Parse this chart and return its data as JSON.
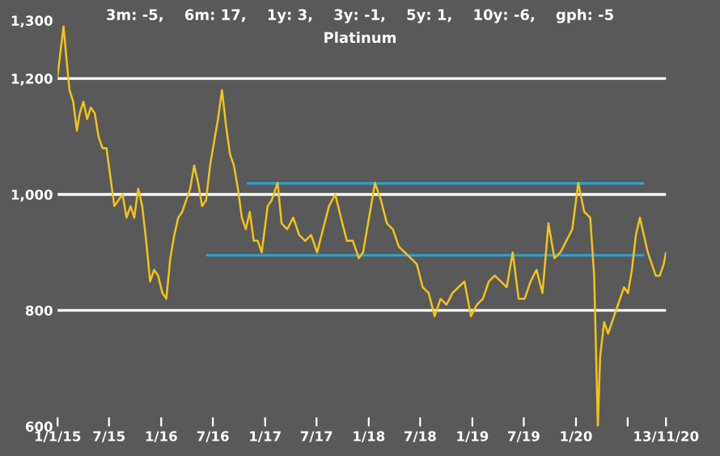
{
  "chart_data": {
    "type": "line",
    "title": "3m: -5,    6m: 17,    1y: 3,    3y: -1,    5y: 1,    10y: -6,    gph: -5",
    "subtitle": "Platinum",
    "x": [
      "2015-01-01",
      "2015-01-12",
      "2015-01-22",
      "2015-02-02",
      "2015-02-12",
      "2015-02-25",
      "2015-03-10",
      "2015-03-20",
      "2015-04-02",
      "2015-04-15",
      "2015-04-28",
      "2015-05-12",
      "2015-05-25",
      "2015-06-08",
      "2015-06-22",
      "2015-07-06",
      "2015-07-20",
      "2015-08-03",
      "2015-08-18",
      "2015-09-01",
      "2015-09-15",
      "2015-09-28",
      "2015-10-12",
      "2015-10-26",
      "2015-11-09",
      "2015-11-23",
      "2015-12-07",
      "2015-12-21",
      "2016-01-05",
      "2016-01-19",
      "2016-02-02",
      "2016-02-16",
      "2016-03-01",
      "2016-03-15",
      "2016-03-29",
      "2016-04-12",
      "2016-04-26",
      "2016-05-10",
      "2016-05-24",
      "2016-06-07",
      "2016-06-21",
      "2016-07-05",
      "2016-07-19",
      "2016-08-02",
      "2016-08-16",
      "2016-08-30",
      "2016-09-13",
      "2016-09-27",
      "2016-10-11",
      "2016-10-25",
      "2016-11-08",
      "2016-11-22",
      "2016-12-06",
      "2016-12-20",
      "2017-01-10",
      "2017-01-24",
      "2017-02-14",
      "2017-02-28",
      "2017-03-20",
      "2017-04-10",
      "2017-05-01",
      "2017-05-22",
      "2017-06-12",
      "2017-07-03",
      "2017-07-24",
      "2017-08-14",
      "2017-09-05",
      "2017-09-25",
      "2017-10-16",
      "2017-11-06",
      "2017-11-27",
      "2017-12-12",
      "2018-01-02",
      "2018-01-23",
      "2018-02-13",
      "2018-03-06",
      "2018-03-27",
      "2018-04-17",
      "2018-05-08",
      "2018-05-29",
      "2018-06-19",
      "2018-07-10",
      "2018-07-31",
      "2018-08-21",
      "2018-09-11",
      "2018-10-02",
      "2018-10-23",
      "2018-11-13",
      "2018-12-04",
      "2018-12-27",
      "2019-01-17",
      "2019-02-07",
      "2019-02-28",
      "2019-03-21",
      "2019-04-11",
      "2019-05-02",
      "2019-05-23",
      "2019-06-13",
      "2019-07-04",
      "2019-07-25",
      "2019-08-15",
      "2019-09-05",
      "2019-09-26",
      "2019-10-17",
      "2019-11-07",
      "2019-11-28",
      "2019-12-19",
      "2020-01-09",
      "2020-01-30",
      "2020-02-20",
      "2020-03-05",
      "2020-03-18",
      "2020-03-26",
      "2020-04-09",
      "2020-04-23",
      "2020-05-07",
      "2020-05-21",
      "2020-06-04",
      "2020-06-18",
      "2020-07-02",
      "2020-07-16",
      "2020-07-30",
      "2020-08-13",
      "2020-08-27",
      "2020-09-10",
      "2020-09-24",
      "2020-10-08",
      "2020-10-22",
      "2020-11-05",
      "2020-11-13"
    ],
    "series": [
      {
        "color": "#f2c31a",
        "values": [
          1205,
          1250,
          1290,
          1230,
          1180,
          1160,
          1110,
          1140,
          1160,
          1130,
          1150,
          1140,
          1100,
          1080,
          1080,
          1030,
          980,
          990,
          1000,
          960,
          980,
          960,
          1010,
          980,
          920,
          850,
          870,
          860,
          830,
          820,
          890,
          930,
          960,
          970,
          990,
          1010,
          1050,
          1020,
          980,
          990,
          1050,
          1090,
          1130,
          1180,
          1120,
          1070,
          1050,
          1010,
          960,
          940,
          970,
          920,
          920,
          900,
          980,
          990,
          1020,
          950,
          940,
          960,
          930,
          920,
          930,
          900,
          940,
          980,
          1000,
          960,
          920,
          920,
          890,
          900,
          960,
          1020,
          990,
          950,
          940,
          910,
          900,
          890,
          880,
          840,
          830,
          790,
          820,
          810,
          830,
          840,
          850,
          790,
          810,
          820,
          850,
          860,
          850,
          840,
          900,
          820,
          820,
          850,
          870,
          830,
          950,
          890,
          900,
          920,
          940,
          1020,
          970,
          960,
          860,
          600,
          720,
          780,
          760,
          780,
          800,
          820,
          840,
          830,
          870,
          930,
          960,
          930,
          900,
          880,
          860,
          860,
          880,
          900
        ]
      },
      {
        "x": [
          "2016-11-01",
          "2020-08-25"
        ],
        "color": "#29a3d6",
        "values": [
          1019,
          1019
        ]
      },
      {
        "x": [
          "2016-06-10",
          "2020-08-25"
        ],
        "color": "#29a3d6",
        "values": [
          895,
          895
        ]
      }
    ],
    "xlim": [
      "2015-01-01",
      "2020-11-13"
    ],
    "xticks": [
      {
        "value": "2015-01-01",
        "label": "1/1/15"
      },
      {
        "value": "2015-07-01",
        "label": "7/15"
      },
      {
        "value": "2016-01-01",
        "label": "1/16"
      },
      {
        "value": "2016-07-01",
        "label": "7/16"
      },
      {
        "value": "2017-01-01",
        "label": "1/17"
      },
      {
        "value": "2017-07-01",
        "label": "7/17"
      },
      {
        "value": "2018-01-01",
        "label": "1/18"
      },
      {
        "value": "2018-07-01",
        "label": "7/18"
      },
      {
        "value": "2019-01-01",
        "label": "1/19"
      },
      {
        "value": "2019-07-01",
        "label": "7/19"
      },
      {
        "value": "2020-01-01",
        "label": "1/20"
      },
      {
        "value": "2020-07-01",
        "label": null
      },
      {
        "value": "2020-11-13",
        "label": "13/11/20"
      }
    ],
    "ylim": [
      600,
      1300
    ],
    "yticks": [
      {
        "value": 600,
        "label": "600"
      },
      {
        "value": 800,
        "label": "800"
      },
      {
        "value": 1000,
        "label": "1,000"
      },
      {
        "value": 1200,
        "label": "1,200"
      },
      {
        "value": 1300,
        "label": "1,300"
      }
    ],
    "grid": "y"
  }
}
